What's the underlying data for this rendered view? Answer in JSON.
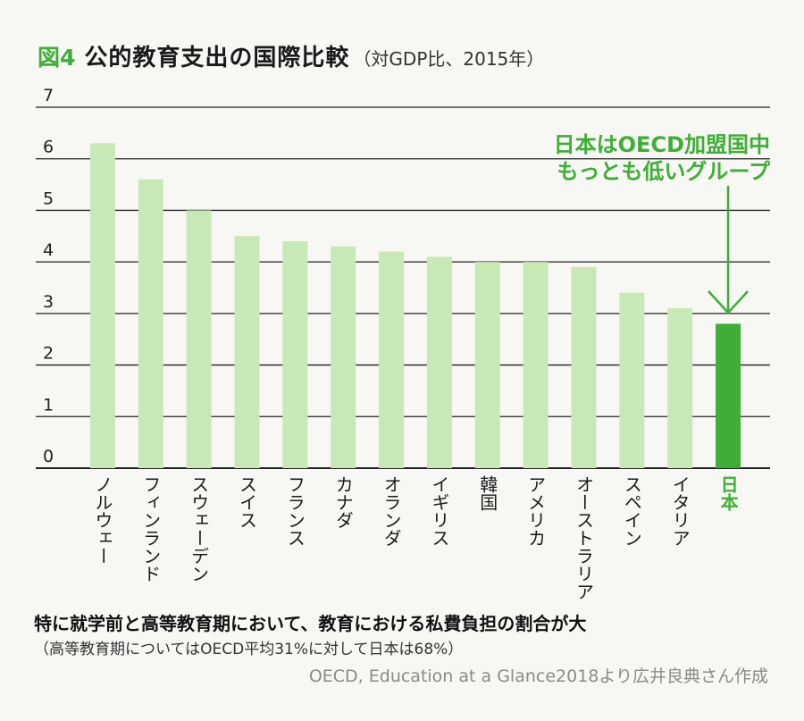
{
  "header": {
    "figure_number": "図4",
    "title": "公的教育支出の国際比較",
    "subtitle": "（対GDP比、2015年）"
  },
  "chart_data": {
    "type": "bar",
    "ylim": [
      0,
      7
    ],
    "yticks": [
      0,
      1,
      2,
      3,
      4,
      5,
      6,
      7
    ],
    "grid": true,
    "categories": [
      "ノルウェー",
      "フィンランド",
      "スウェーデン",
      "スイス",
      "フランス",
      "カナダ",
      "オランダ",
      "イギリス",
      "韓国",
      "アメリカ",
      "オーストラリア",
      "スペイン",
      "イタリア",
      "日本"
    ],
    "values": [
      6.3,
      5.6,
      5.0,
      4.5,
      4.4,
      4.3,
      4.2,
      4.1,
      4.0,
      4.0,
      3.9,
      3.4,
      3.1,
      2.8
    ],
    "highlight_index": 13,
    "annotation": [
      "日本はOECD加盟国中",
      "もっとも低いグループ"
    ],
    "colors": {
      "bar": "#c8e8b6",
      "highlight": "#3fae37",
      "annotation": "#3fae37",
      "grid": "#222222"
    }
  },
  "footer": {
    "note": "特に就学前と高等教育期において、教育における私費負担の割合が大",
    "subnote": "（高等教育期についてはOECD平均31%に対して日本は68%）",
    "source": "OECD, Education at a Glance2018より広井良典さん作成"
  }
}
